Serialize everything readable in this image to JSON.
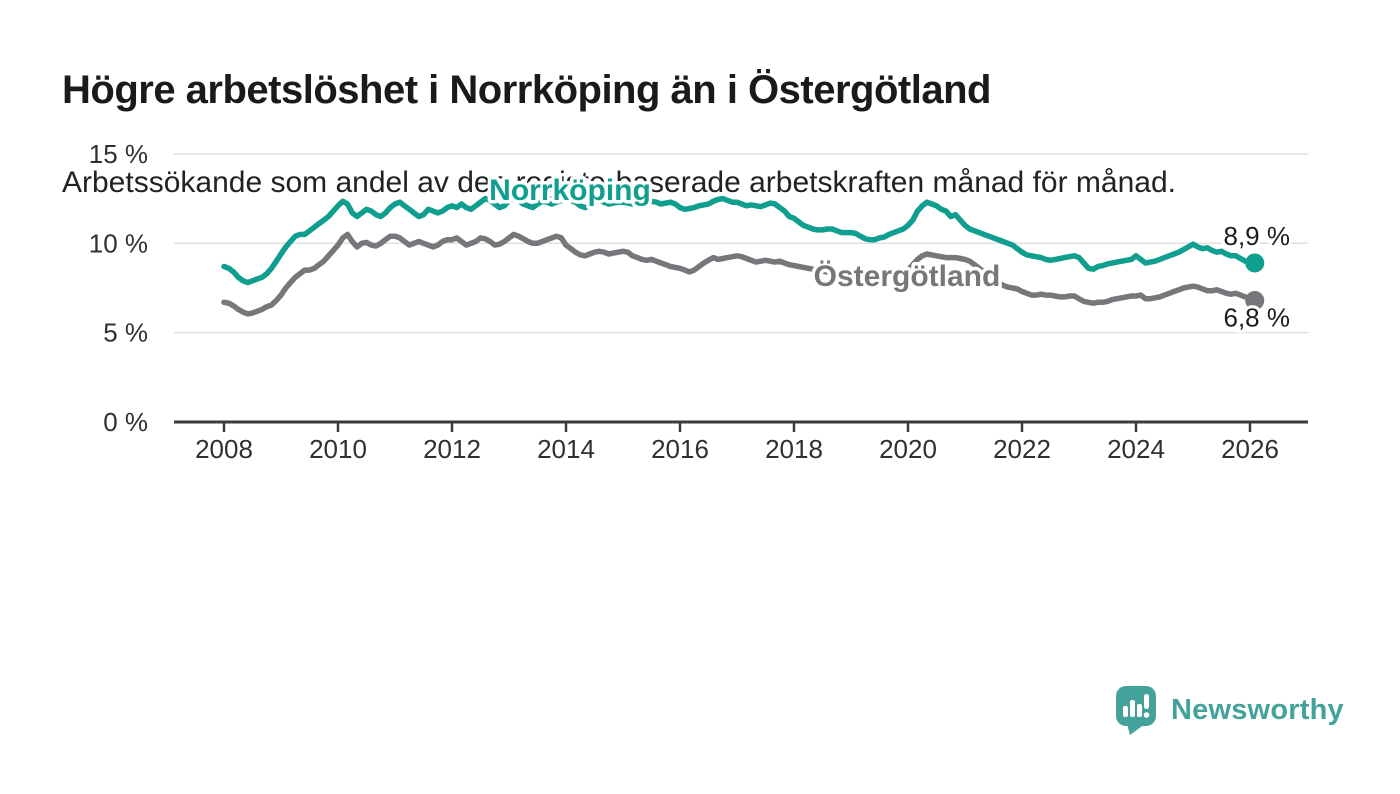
{
  "title": "Högre arbetslöshet i Norrköping än i Östergötland",
  "subtitle": "Arbetssökande som andel av den registerbaserade arbetskraften månad för månad.",
  "branding": {
    "name": "Newsworthy"
  },
  "colors": {
    "norrkoping": "#109e8f",
    "ostergotland": "#77767b",
    "grid": "#e0e0e0",
    "axis": "#3a3a3a",
    "tick_text": "#303030",
    "annotation_text": "#1d1d1b",
    "logo": "#43a39b"
  },
  "chart_data": {
    "type": "line",
    "title": "Högre arbetslöshet i Norrköping än i Östergötland",
    "subtitle": "Arbetssökande som andel av den registerbaserade arbetskraften månad för månad.",
    "x_unit": "month",
    "x_start_year": 2008,
    "x_end": "2026-02",
    "ylim": [
      0,
      15.7
    ],
    "grid": "horizontal",
    "x_ticks": [
      2008,
      2010,
      2012,
      2014,
      2016,
      2018,
      2020,
      2022,
      2024,
      2026
    ],
    "y_ticks": [
      {
        "value": 0,
        "label": "0 %"
      },
      {
        "value": 5,
        "label": "5 %"
      },
      {
        "value": 10,
        "label": "10 %"
      },
      {
        "value": 15,
        "label": "15 %"
      }
    ],
    "series": [
      {
        "name": "Norrköping",
        "color": "#109e8f",
        "end_label": "8,9 %",
        "end_value": 8.9,
        "values": [
          8.7,
          8.6,
          8.4,
          8.1,
          7.9,
          7.8,
          7.9,
          8.0,
          8.1,
          8.3,
          8.6,
          9.0,
          9.4,
          9.8,
          10.1,
          10.4,
          10.5,
          10.5,
          10.7,
          10.9,
          11.1,
          11.3,
          11.5,
          11.8,
          12.1,
          12.35,
          12.2,
          11.7,
          11.5,
          11.7,
          11.9,
          11.8,
          11.6,
          11.5,
          11.7,
          12.0,
          12.2,
          12.3,
          12.1,
          11.9,
          11.7,
          11.5,
          11.6,
          11.9,
          11.8,
          11.7,
          11.8,
          12.0,
          12.1,
          12.0,
          12.2,
          12.0,
          11.9,
          12.1,
          12.3,
          12.5,
          12.4,
          12.2,
          12.0,
          12.1,
          12.4,
          12.55,
          12.4,
          12.2,
          12.1,
          12.0,
          12.2,
          12.35,
          12.3,
          12.2,
          12.3,
          12.4,
          12.5,
          12.4,
          12.3,
          12.1,
          12.0,
          12.1,
          12.3,
          12.4,
          12.3,
          12.2,
          12.25,
          12.3,
          12.3,
          12.25,
          12.2,
          12.3,
          12.25,
          12.3,
          12.35,
          12.3,
          12.2,
          12.25,
          12.3,
          12.2,
          12.0,
          11.9,
          11.95,
          12.0,
          12.1,
          12.15,
          12.2,
          12.35,
          12.45,
          12.5,
          12.4,
          12.3,
          12.3,
          12.2,
          12.1,
          12.15,
          12.1,
          12.05,
          12.15,
          12.25,
          12.2,
          12.0,
          11.8,
          11.5,
          11.4,
          11.2,
          11.0,
          10.9,
          10.8,
          10.75,
          10.75,
          10.8,
          10.8,
          10.7,
          10.6,
          10.6,
          10.6,
          10.55,
          10.4,
          10.25,
          10.2,
          10.2,
          10.3,
          10.35,
          10.5,
          10.6,
          10.7,
          10.8,
          11.0,
          11.3,
          11.8,
          12.1,
          12.3,
          12.2,
          12.1,
          11.9,
          11.8,
          11.5,
          11.6,
          11.3,
          11.0,
          10.8,
          10.7,
          10.6,
          10.5,
          10.4,
          10.3,
          10.2,
          10.1,
          10.0,
          9.9,
          9.7,
          9.5,
          9.35,
          9.3,
          9.25,
          9.2,
          9.1,
          9.05,
          9.1,
          9.15,
          9.2,
          9.25,
          9.3,
          9.2,
          8.9,
          8.6,
          8.55,
          8.7,
          8.75,
          8.85,
          8.9,
          8.95,
          9.0,
          9.05,
          9.1,
          9.3,
          9.1,
          8.9,
          8.95,
          9.0,
          9.1,
          9.2,
          9.3,
          9.4,
          9.5,
          9.65,
          9.8,
          9.95,
          9.8,
          9.7,
          9.75,
          9.6,
          9.5,
          9.55,
          9.4,
          9.3,
          9.3,
          9.15,
          9.0,
          8.95,
          8.9
        ]
      },
      {
        "name": "Östergötland",
        "color": "#77767b",
        "end_label": "6,8 %",
        "end_value": 6.8,
        "values": [
          6.7,
          6.65,
          6.5,
          6.3,
          6.15,
          6.05,
          6.1,
          6.2,
          6.3,
          6.45,
          6.55,
          6.8,
          7.1,
          7.5,
          7.8,
          8.1,
          8.3,
          8.5,
          8.5,
          8.6,
          8.8,
          9.0,
          9.3,
          9.6,
          9.9,
          10.3,
          10.5,
          10.1,
          9.8,
          10.0,
          10.05,
          9.9,
          9.85,
          10.0,
          10.2,
          10.4,
          10.4,
          10.3,
          10.1,
          9.9,
          10.0,
          10.1,
          10.0,
          9.9,
          9.8,
          9.9,
          10.1,
          10.2,
          10.2,
          10.3,
          10.1,
          9.9,
          10.0,
          10.1,
          10.3,
          10.25,
          10.1,
          9.9,
          9.95,
          10.1,
          10.3,
          10.5,
          10.4,
          10.25,
          10.1,
          10.0,
          10.0,
          10.1,
          10.2,
          10.3,
          10.4,
          10.3,
          9.9,
          9.7,
          9.5,
          9.35,
          9.3,
          9.4,
          9.5,
          9.55,
          9.5,
          9.4,
          9.45,
          9.5,
          9.55,
          9.5,
          9.3,
          9.2,
          9.1,
          9.05,
          9.1,
          9.0,
          8.9,
          8.8,
          8.7,
          8.65,
          8.6,
          8.5,
          8.4,
          8.5,
          8.7,
          8.9,
          9.05,
          9.2,
          9.1,
          9.15,
          9.2,
          9.25,
          9.3,
          9.25,
          9.15,
          9.05,
          8.95,
          9.0,
          9.05,
          9.0,
          8.95,
          9.0,
          8.9,
          8.8,
          8.75,
          8.7,
          8.65,
          8.6,
          8.55,
          8.5,
          8.45,
          8.4,
          8.35,
          8.3,
          8.25,
          8.2,
          8.15,
          8.1,
          8.05,
          8.0,
          7.95,
          7.95,
          8.0,
          8.05,
          8.1,
          8.15,
          8.2,
          8.3,
          8.5,
          8.8,
          9.1,
          9.3,
          9.4,
          9.35,
          9.3,
          9.25,
          9.2,
          9.2,
          9.2,
          9.15,
          9.1,
          9.0,
          8.8,
          8.6,
          8.4,
          8.2,
          8.0,
          7.8,
          7.65,
          7.55,
          7.5,
          7.45,
          7.3,
          7.2,
          7.1,
          7.1,
          7.15,
          7.1,
          7.1,
          7.05,
          7.0,
          7.0,
          7.05,
          7.05,
          6.9,
          6.75,
          6.7,
          6.65,
          6.7,
          6.7,
          6.75,
          6.85,
          6.9,
          6.95,
          7.0,
          7.05,
          7.05,
          7.1,
          6.9,
          6.9,
          6.95,
          7.0,
          7.1,
          7.2,
          7.3,
          7.4,
          7.5,
          7.55,
          7.6,
          7.55,
          7.45,
          7.35,
          7.35,
          7.4,
          7.3,
          7.2,
          7.15,
          7.2,
          7.1,
          7.0,
          6.9,
          6.8
        ]
      }
    ],
    "legend": "inline-labels"
  }
}
